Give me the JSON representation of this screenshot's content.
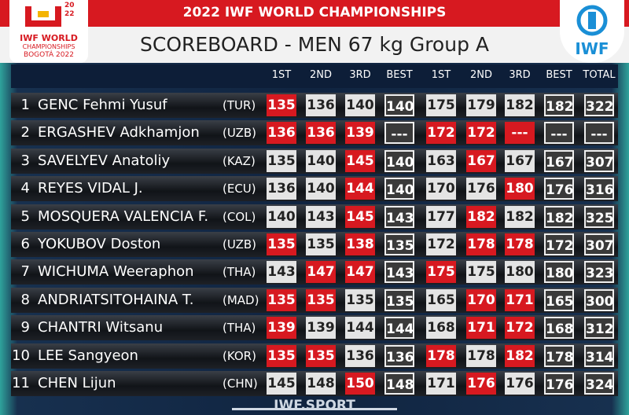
{
  "header": {
    "event": "2022 IWF WORLD CHAMPIONSHIPS",
    "title": "SCOREBOARD - MEN 67 kg Group A",
    "logo_left": {
      "year_top": "20",
      "year_bottom": "22",
      "line1": "IWF WORLD",
      "line2": "CHAMPIONSHIPS",
      "line3": "BOGOTÁ 2022"
    },
    "logo_right": "IWF"
  },
  "table": {
    "columns": [
      "1ST",
      "2ND",
      "3RD",
      "BEST",
      "1ST",
      "2ND",
      "3RD",
      "BEST",
      "TOTAL"
    ],
    "rows": [
      {
        "rank": 1,
        "name": "GENC Fehmi Yusuf",
        "country": "(TUR)",
        "cells": [
          135,
          136,
          140,
          140,
          175,
          179,
          182,
          182,
          322
        ],
        "colors": [
          "#d71920",
          "#e4e4e4",
          "#e4e4e4",
          "#3a3a3a",
          "#e4e4e4",
          "#e4e4e4",
          "#e4e4e4",
          "#3a3a3a",
          "#3a3a3a"
        ]
      },
      {
        "rank": 2,
        "name": "ERGASHEV Adkhamjon",
        "country": "(UZB)",
        "cells": [
          136,
          136,
          139,
          "---",
          172,
          172,
          "---",
          "---",
          "---"
        ],
        "colors": [
          "#d71920",
          "#d71920",
          "#d71920",
          "#3a3a3a",
          "#d71920",
          "#d71920",
          "#d71920",
          "#3a3a3a",
          "#3a3a3a"
        ]
      },
      {
        "rank": 3,
        "name": "SAVELYEV Anatoliy",
        "country": "(KAZ)",
        "cells": [
          135,
          140,
          145,
          140,
          163,
          167,
          167,
          167,
          307
        ],
        "colors": [
          "#e4e4e4",
          "#e4e4e4",
          "#d71920",
          "#3a3a3a",
          "#e4e4e4",
          "#d71920",
          "#e4e4e4",
          "#3a3a3a",
          "#3a3a3a"
        ]
      },
      {
        "rank": 4,
        "name": "REYES VIDAL J.",
        "country": "(ECU)",
        "cells": [
          136,
          140,
          144,
          140,
          170,
          176,
          180,
          176,
          316
        ],
        "colors": [
          "#e4e4e4",
          "#e4e4e4",
          "#d71920",
          "#3a3a3a",
          "#e4e4e4",
          "#e4e4e4",
          "#d71920",
          "#3a3a3a",
          "#3a3a3a"
        ]
      },
      {
        "rank": 5,
        "name": "MOSQUERA VALENCIA F.",
        "country": "(COL)",
        "cells": [
          140,
          143,
          145,
          143,
          177,
          182,
          182,
          182,
          325
        ],
        "colors": [
          "#e4e4e4",
          "#e4e4e4",
          "#d71920",
          "#3a3a3a",
          "#e4e4e4",
          "#d71920",
          "#e4e4e4",
          "#3a3a3a",
          "#3a3a3a"
        ]
      },
      {
        "rank": 6,
        "name": "YOKUBOV Doston",
        "country": "(UZB)",
        "cells": [
          135,
          135,
          138,
          135,
          172,
          178,
          178,
          172,
          307
        ],
        "colors": [
          "#d71920",
          "#e4e4e4",
          "#d71920",
          "#3a3a3a",
          "#e4e4e4",
          "#d71920",
          "#d71920",
          "#3a3a3a",
          "#3a3a3a"
        ]
      },
      {
        "rank": 7,
        "name": "WICHUMA Weeraphon",
        "country": "(THA)",
        "cells": [
          143,
          147,
          147,
          143,
          175,
          175,
          180,
          180,
          323
        ],
        "colors": [
          "#e4e4e4",
          "#d71920",
          "#d71920",
          "#3a3a3a",
          "#d71920",
          "#e4e4e4",
          "#e4e4e4",
          "#3a3a3a",
          "#3a3a3a"
        ]
      },
      {
        "rank": 8,
        "name": "ANDRIATSITOHAINA T.",
        "country": "(MAD)",
        "cells": [
          135,
          135,
          135,
          135,
          165,
          170,
          171,
          165,
          300
        ],
        "colors": [
          "#d71920",
          "#d71920",
          "#e4e4e4",
          "#3a3a3a",
          "#e4e4e4",
          "#d71920",
          "#d71920",
          "#3a3a3a",
          "#3a3a3a"
        ]
      },
      {
        "rank": 9,
        "name": "CHANTRI Witsanu",
        "country": "(THA)",
        "cells": [
          139,
          139,
          144,
          144,
          168,
          171,
          172,
          168,
          312
        ],
        "colors": [
          "#d71920",
          "#e4e4e4",
          "#e4e4e4",
          "#3a3a3a",
          "#e4e4e4",
          "#d71920",
          "#d71920",
          "#3a3a3a",
          "#3a3a3a"
        ]
      },
      {
        "rank": 10,
        "name": "LEE Sangyeon",
        "country": "(KOR)",
        "cells": [
          135,
          135,
          136,
          136,
          178,
          178,
          182,
          178,
          314
        ],
        "colors": [
          "#d71920",
          "#d71920",
          "#e4e4e4",
          "#3a3a3a",
          "#d71920",
          "#e4e4e4",
          "#d71920",
          "#3a3a3a",
          "#3a3a3a"
        ]
      },
      {
        "rank": 11,
        "name": "CHEN Lijun",
        "country": "(CHN)",
        "cells": [
          145,
          148,
          150,
          148,
          171,
          176,
          176,
          176,
          324
        ],
        "colors": [
          "#e4e4e4",
          "#e4e4e4",
          "#d71920",
          "#3a3a3a",
          "#e4e4e4",
          "#d71920",
          "#e4e4e4",
          "#3a3a3a",
          "#3a3a3a"
        ]
      }
    ]
  },
  "footer": "IWF.SPORT"
}
